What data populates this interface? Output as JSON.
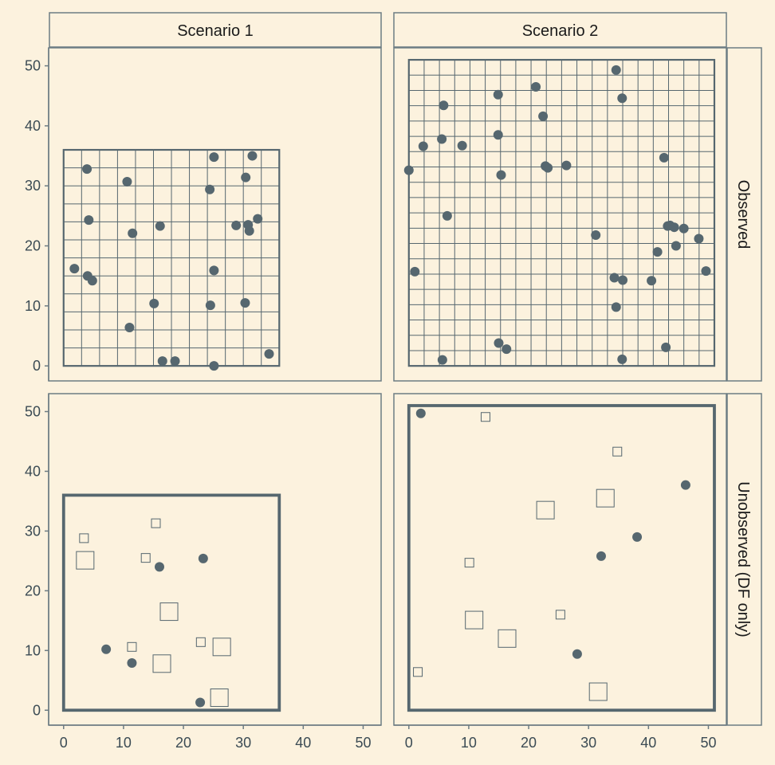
{
  "colors": {
    "background": "#fcf2de",
    "ink": "#56676f",
    "strip_fill": "#fcf2de",
    "strip_border": "#6d7c83",
    "text": "#1a1a1a",
    "tick_text": "#3b4b54"
  },
  "chart_data": {
    "type": "scatter",
    "facet_columns": [
      "Scenario 1",
      "Scenario 2"
    ],
    "facet_rows": [
      "Observed",
      "Unobserved (DF only)"
    ],
    "x_ticks": [
      0,
      10,
      20,
      30,
      40,
      50
    ],
    "y_ticks": [
      0,
      10,
      20,
      30,
      40,
      50
    ],
    "xlim": [
      -2.5,
      53
    ],
    "ylim": [
      -2.5,
      53
    ],
    "grid": false,
    "panels": [
      {
        "column": "Scenario 1",
        "row": "Observed",
        "region": {
          "x": [
            0,
            36
          ],
          "y": [
            0,
            36
          ]
        },
        "region_grid_step": 3,
        "points": [
          [
            3.9,
            32.8
          ],
          [
            10.6,
            30.7
          ],
          [
            25.1,
            34.8
          ],
          [
            31.5,
            35.0
          ],
          [
            24.4,
            29.4
          ],
          [
            30.4,
            31.4
          ],
          [
            4.2,
            24.3
          ],
          [
            11.5,
            22.1
          ],
          [
            16.1,
            23.3
          ],
          [
            28.8,
            23.4
          ],
          [
            30.8,
            23.5
          ],
          [
            31.0,
            22.5
          ],
          [
            32.4,
            24.5
          ],
          [
            1.8,
            16.2
          ],
          [
            4.0,
            15.0
          ],
          [
            4.8,
            14.2
          ],
          [
            25.1,
            15.9
          ],
          [
            15.1,
            10.4
          ],
          [
            24.5,
            10.1
          ],
          [
            30.3,
            10.5
          ],
          [
            11.0,
            6.4
          ],
          [
            16.5,
            0.8
          ],
          [
            18.6,
            0.8
          ],
          [
            25.1,
            0.0
          ],
          [
            34.3,
            2.0
          ]
        ],
        "hidden": []
      },
      {
        "column": "Scenario 2",
        "row": "Observed",
        "region": {
          "x": [
            0,
            51
          ],
          "y": [
            0,
            51
          ]
        },
        "region_grid_step": 2.55,
        "points": [
          [
            34.6,
            49.3
          ],
          [
            21.2,
            46.5
          ],
          [
            14.9,
            45.2
          ],
          [
            35.6,
            44.6
          ],
          [
            5.8,
            43.4
          ],
          [
            22.4,
            41.6
          ],
          [
            14.9,
            38.5
          ],
          [
            5.5,
            37.8
          ],
          [
            2.4,
            36.6
          ],
          [
            8.9,
            36.7
          ],
          [
            42.6,
            34.7
          ],
          [
            22.8,
            33.3
          ],
          [
            23.2,
            33.0
          ],
          [
            26.3,
            33.4
          ],
          [
            0.0,
            32.6
          ],
          [
            15.4,
            31.8
          ],
          [
            6.4,
            25.0
          ],
          [
            31.2,
            21.8
          ],
          [
            43.2,
            23.3
          ],
          [
            43.6,
            23.4
          ],
          [
            44.3,
            23.1
          ],
          [
            45.9,
            22.9
          ],
          [
            48.4,
            21.2
          ],
          [
            41.5,
            19.0
          ],
          [
            44.6,
            20.0
          ],
          [
            1.0,
            15.7
          ],
          [
            49.6,
            15.8
          ],
          [
            34.3,
            14.7
          ],
          [
            35.7,
            14.3
          ],
          [
            40.5,
            14.2
          ],
          [
            34.6,
            9.8
          ],
          [
            15.0,
            3.8
          ],
          [
            16.3,
            2.8
          ],
          [
            42.9,
            3.1
          ],
          [
            5.6,
            1.0
          ],
          [
            35.6,
            1.1
          ]
        ],
        "hidden": []
      },
      {
        "column": "Scenario 1",
        "row": "Unobserved (DF only)",
        "region": {
          "x": [
            0,
            36
          ],
          "y": [
            0,
            36
          ]
        },
        "region_grid_step": null,
        "points": [
          [
            23.3,
            25.4
          ],
          [
            16.0,
            24.0
          ],
          [
            7.1,
            10.2
          ],
          [
            11.4,
            7.9
          ],
          [
            22.8,
            1.3
          ]
        ],
        "hidden": [
          {
            "x": 3.4,
            "y": 28.8,
            "size": 1
          },
          {
            "x": 15.4,
            "y": 31.3,
            "size": 1
          },
          {
            "x": 3.6,
            "y": 25.1,
            "size": 3
          },
          {
            "x": 13.7,
            "y": 25.5,
            "size": 1
          },
          {
            "x": 17.6,
            "y": 16.5,
            "size": 3
          },
          {
            "x": 11.4,
            "y": 10.6,
            "size": 1
          },
          {
            "x": 22.9,
            "y": 11.4,
            "size": 1
          },
          {
            "x": 26.4,
            "y": 10.6,
            "size": 3
          },
          {
            "x": 16.4,
            "y": 7.8,
            "size": 3
          },
          {
            "x": 26.0,
            "y": 2.1,
            "size": 3
          }
        ]
      },
      {
        "column": "Scenario 2",
        "row": "Unobserved (DF only)",
        "region": {
          "x": [
            0,
            51
          ],
          "y": [
            0,
            51
          ]
        },
        "region_grid_step": null,
        "points": [
          [
            2.0,
            49.7
          ],
          [
            46.2,
            37.7
          ],
          [
            38.1,
            29.0
          ],
          [
            32.1,
            25.8
          ],
          [
            28.1,
            9.4
          ]
        ],
        "hidden": [
          {
            "x": 12.8,
            "y": 49.1,
            "size": 1
          },
          {
            "x": 34.8,
            "y": 43.3,
            "size": 1
          },
          {
            "x": 22.8,
            "y": 33.5,
            "size": 3
          },
          {
            "x": 32.8,
            "y": 35.5,
            "size": 3
          },
          {
            "x": 10.1,
            "y": 24.7,
            "size": 1
          },
          {
            "x": 10.9,
            "y": 15.1,
            "size": 3
          },
          {
            "x": 25.3,
            "y": 16.0,
            "size": 1
          },
          {
            "x": 16.4,
            "y": 12.0,
            "size": 3
          },
          {
            "x": 1.5,
            "y": 6.4,
            "size": 1
          },
          {
            "x": 31.6,
            "y": 3.1,
            "size": 3
          }
        ]
      }
    ]
  }
}
